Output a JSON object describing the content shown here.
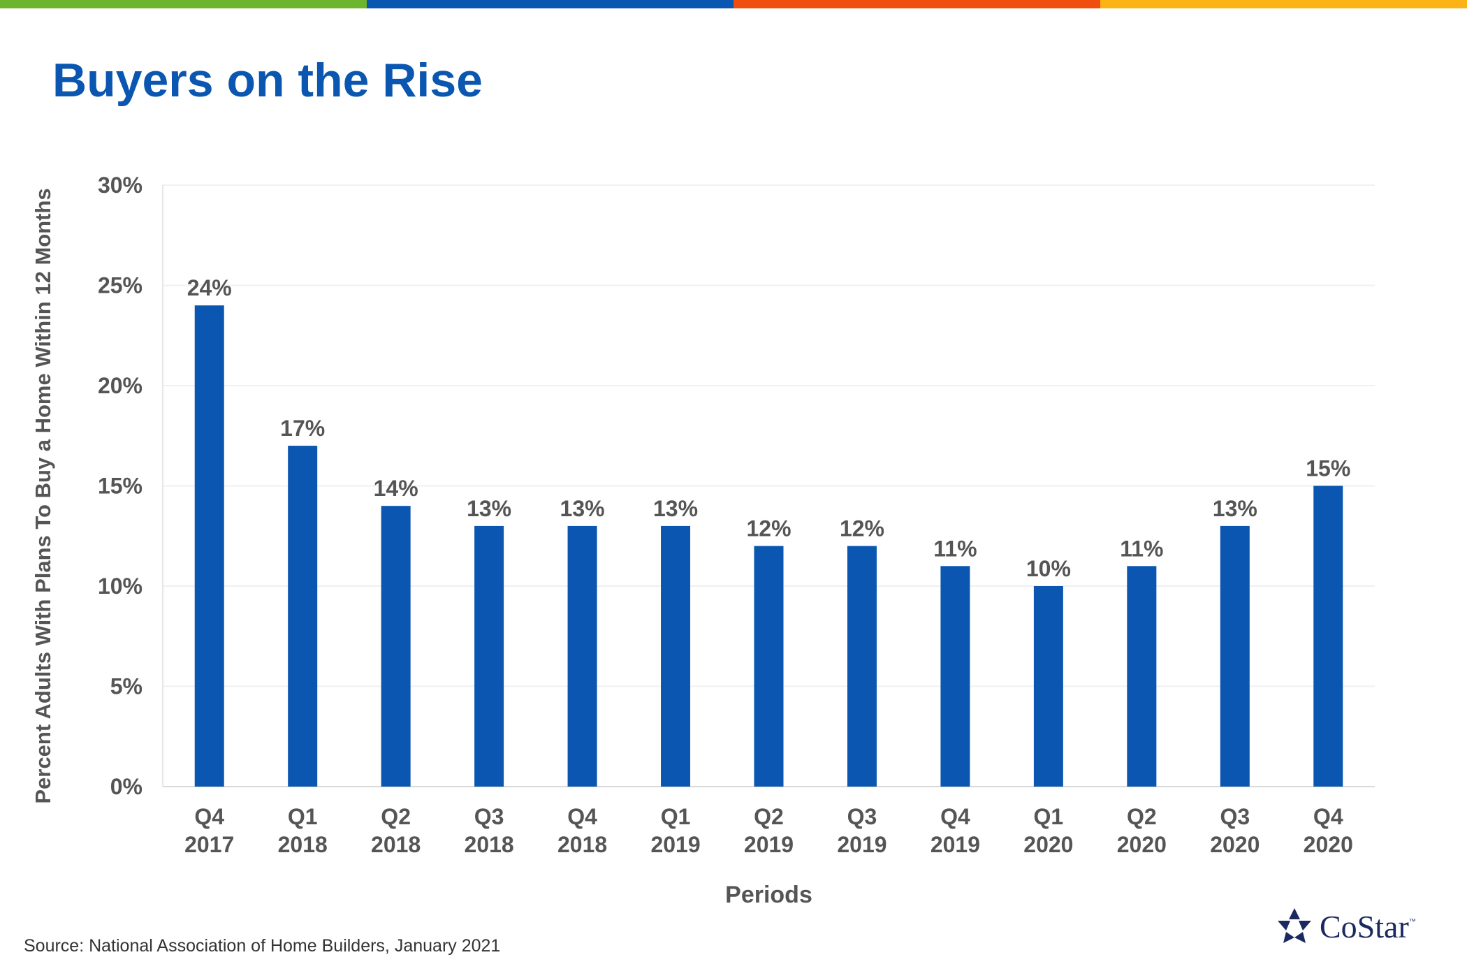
{
  "page": {
    "title": "Buyers on the Rise",
    "source": "Source: National Association of Home Builders, January 2021",
    "logo_text": "CoStar",
    "logo_tm": "™",
    "top_bar_colors": [
      "#6cb52d",
      "#0a56b0",
      "#f04e0f",
      "#fbb315"
    ]
  },
  "chart_data": {
    "type": "bar",
    "title": "Buyers on the Rise",
    "xlabel": "Periods",
    "ylabel": "Percent Adults With Plans To Buy a Home Within 12 Months",
    "categories": [
      [
        "Q4",
        "2017"
      ],
      [
        "Q1",
        "2018"
      ],
      [
        "Q2",
        "2018"
      ],
      [
        "Q3",
        "2018"
      ],
      [
        "Q4",
        "2018"
      ],
      [
        "Q1",
        "2019"
      ],
      [
        "Q2",
        "2019"
      ],
      [
        "Q3",
        "2019"
      ],
      [
        "Q4",
        "2019"
      ],
      [
        "Q1",
        "2020"
      ],
      [
        "Q2",
        "2020"
      ],
      [
        "Q3",
        "2020"
      ],
      [
        "Q4",
        "2020"
      ]
    ],
    "values": [
      24,
      17,
      14,
      13,
      13,
      13,
      12,
      12,
      11,
      10,
      11,
      13,
      15
    ],
    "value_labels": [
      "24%",
      "17%",
      "14%",
      "13%",
      "13%",
      "13%",
      "12%",
      "12%",
      "11%",
      "10%",
      "11%",
      "13%",
      "15%"
    ],
    "ylim": [
      0,
      30
    ],
    "yticks": [
      0,
      5,
      10,
      15,
      20,
      25,
      30
    ],
    "ytick_labels": [
      "0%",
      "5%",
      "10%",
      "15%",
      "20%",
      "25%",
      "30%"
    ],
    "grid": true,
    "legend": "none",
    "bar_color": "#0a56b0",
    "text_color": "#555555"
  }
}
